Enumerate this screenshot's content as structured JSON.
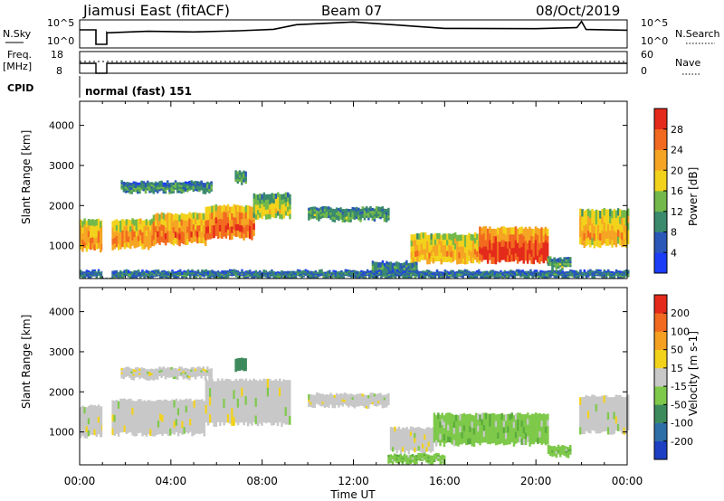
{
  "header": {
    "station": "Jiamusi East (fitACF)",
    "beam": "Beam 07",
    "date": "08/Oct/2019"
  },
  "nsky_panel": {
    "left_label": "N.Sky",
    "right_label": "N.Search",
    "tick_top": "10^5",
    "tick_bottom": "10^0"
  },
  "freq_panel": {
    "left_label_line1": "Freq.",
    "left_label_line2": "[MHz]",
    "left_tick_top": "18",
    "left_tick_bottom": "8",
    "right_label": "Nave",
    "right_tick_top": "60",
    "right_tick_bottom": "0"
  },
  "cpid": {
    "label": "CPID",
    "value": "normal (fast) 151"
  },
  "chart_data": [
    {
      "type": "heatmap",
      "name": "power",
      "ylabel": "Slant Range [km]",
      "yticks": [
        "1000",
        "2000",
        "3000",
        "4000"
      ],
      "ylim": [
        180,
        4600
      ],
      "colorbar_label": "Power [dB]",
      "colorbar_ticks": [
        "4",
        "8",
        "12",
        "16",
        "20",
        "24",
        "28"
      ],
      "colorbar_range": [
        0,
        32
      ],
      "colors": [
        "#1a3df5",
        "#2a57b8",
        "#3b8a6e",
        "#72b84a",
        "#f2d21b",
        "#f5a523",
        "#f26a1f",
        "#e42a1a"
      ],
      "regions": [
        {
          "t0": 0.0,
          "t1": 1.0,
          "r0": 900,
          "r1": 1650,
          "level": 0.65
        },
        {
          "t0": 1.4,
          "t1": 3.2,
          "r0": 950,
          "r1": 1650,
          "level": 0.65
        },
        {
          "t0": 3.2,
          "t1": 5.5,
          "r0": 1050,
          "r1": 1800,
          "level": 0.7
        },
        {
          "t0": 5.5,
          "t1": 7.6,
          "r0": 1200,
          "r1": 2000,
          "level": 0.75
        },
        {
          "t0": 7.6,
          "t1": 9.2,
          "r0": 1700,
          "r1": 2300,
          "level": 0.45
        },
        {
          "t0": 10.0,
          "t1": 13.5,
          "r0": 1650,
          "r1": 1950,
          "level": 0.35
        },
        {
          "t0": 14.5,
          "t1": 17.5,
          "r0": 600,
          "r1": 1300,
          "level": 0.6
        },
        {
          "t0": 17.5,
          "t1": 20.5,
          "r0": 600,
          "r1": 1450,
          "level": 0.85
        },
        {
          "t0": 20.5,
          "t1": 21.5,
          "r0": 450,
          "r1": 700,
          "level": 0.35
        },
        {
          "t0": 21.9,
          "t1": 24.0,
          "r0": 1000,
          "r1": 1900,
          "level": 0.6
        },
        {
          "t0": 1.8,
          "t1": 5.8,
          "r0": 2350,
          "r1": 2600,
          "level": 0.3
        },
        {
          "t0": 6.8,
          "t1": 7.3,
          "r0": 2550,
          "r1": 2850,
          "level": 0.35
        },
        {
          "t0": 12.8,
          "t1": 14.8,
          "r0": 300,
          "r1": 600,
          "level": 0.3
        },
        {
          "t0": 0.0,
          "t1": 24.0,
          "r0": 200,
          "r1": 380,
          "level": 0.25
        }
      ]
    },
    {
      "type": "heatmap",
      "name": "velocity",
      "ylabel": "Slant Range [km]",
      "yticks": [
        "1000",
        "2000",
        "3000",
        "4000"
      ],
      "ylim": [
        180,
        4600
      ],
      "colorbar_label": "Velocity [m s-1]",
      "colorbar_ticks": [
        "200",
        "100",
        "50",
        "15",
        "-15",
        "-50",
        "-100",
        "-200"
      ],
      "colorbar_range": [
        -250,
        250
      ],
      "colors": [
        "#1c3fc4",
        "#2f6fa8",
        "#3d8a5c",
        "#7ec94a",
        "#c8c8c8",
        "#f2d21b",
        "#f5a021",
        "#f26a1f",
        "#e42a1a"
      ],
      "regions": [
        {
          "t0": 0.0,
          "t1": 1.0,
          "r0": 900,
          "r1": 1650,
          "class": "gray"
        },
        {
          "t0": 1.4,
          "t1": 5.5,
          "r0": 950,
          "r1": 1800,
          "class": "gray"
        },
        {
          "t0": 5.5,
          "t1": 9.2,
          "r0": 1200,
          "r1": 2300,
          "class": "gray"
        },
        {
          "t0": 10.0,
          "t1": 13.5,
          "r0": 1650,
          "r1": 1950,
          "class": "gray"
        },
        {
          "t0": 13.6,
          "t1": 15.5,
          "r0": 500,
          "r1": 1100,
          "class": "gray"
        },
        {
          "t0": 15.5,
          "t1": 20.5,
          "r0": 700,
          "r1": 1450,
          "class": "green"
        },
        {
          "t0": 20.5,
          "t1": 21.5,
          "r0": 400,
          "r1": 650,
          "class": "green"
        },
        {
          "t0": 21.9,
          "t1": 24.0,
          "r0": 1000,
          "r1": 1900,
          "class": "gray"
        },
        {
          "t0": 1.8,
          "t1": 5.8,
          "r0": 2350,
          "r1": 2600,
          "class": "gray"
        },
        {
          "t0": 6.8,
          "t1": 7.3,
          "r0": 2550,
          "r1": 2850,
          "class": "darkgreen"
        },
        {
          "t0": 13.5,
          "t1": 16.0,
          "r0": 250,
          "r1": 450,
          "class": "green"
        }
      ]
    }
  ],
  "time_axis": {
    "label": "Time UT",
    "ticks": [
      "00:00",
      "04:00",
      "08:00",
      "12:00",
      "16:00",
      "20:00",
      "00:00"
    ]
  }
}
